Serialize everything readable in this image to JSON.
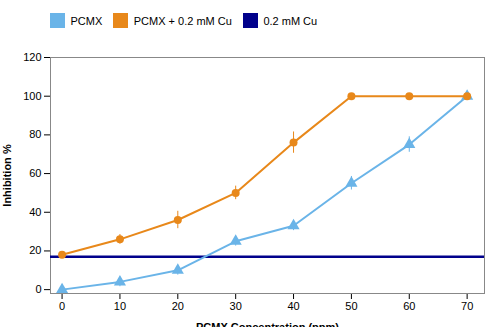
{
  "chart_data": {
    "type": "line",
    "xlabel": "PCMX Concentration (ppm)",
    "ylabel": "Inhibition %",
    "x": [
      0,
      10,
      20,
      30,
      40,
      50,
      60,
      70
    ],
    "series": [
      {
        "name": "PCMX",
        "color": "#6ab4e8",
        "marker": "triangle",
        "values": [
          0,
          4,
          10,
          25,
          33,
          55,
          75,
          100
        ],
        "yerr": [
          0.5,
          2.5,
          2.5,
          2.5,
          2.5,
          3.5,
          4.0,
          1.0
        ]
      },
      {
        "name": "PCMX + 0.2 mM Cu",
        "color": "#E8881A",
        "marker": "circle",
        "values": [
          18,
          26,
          36,
          50,
          76,
          100,
          100,
          100
        ],
        "yerr": [
          1.5,
          2.5,
          4.5,
          3.5,
          5.5,
          1.0,
          1.0,
          1.0
        ]
      },
      {
        "name": "0.2 mM Cu",
        "color": "#00008B",
        "type": "hline",
        "y": 17.0
      }
    ],
    "xlim": [
      -2,
      73
    ],
    "ylim": [
      -2,
      120
    ],
    "xticks": [
      0,
      10,
      20,
      30,
      40,
      50,
      60,
      70
    ],
    "yticks": [
      0,
      20,
      40,
      60,
      80,
      100,
      120
    ],
    "grid": false,
    "legend": "upper left"
  }
}
